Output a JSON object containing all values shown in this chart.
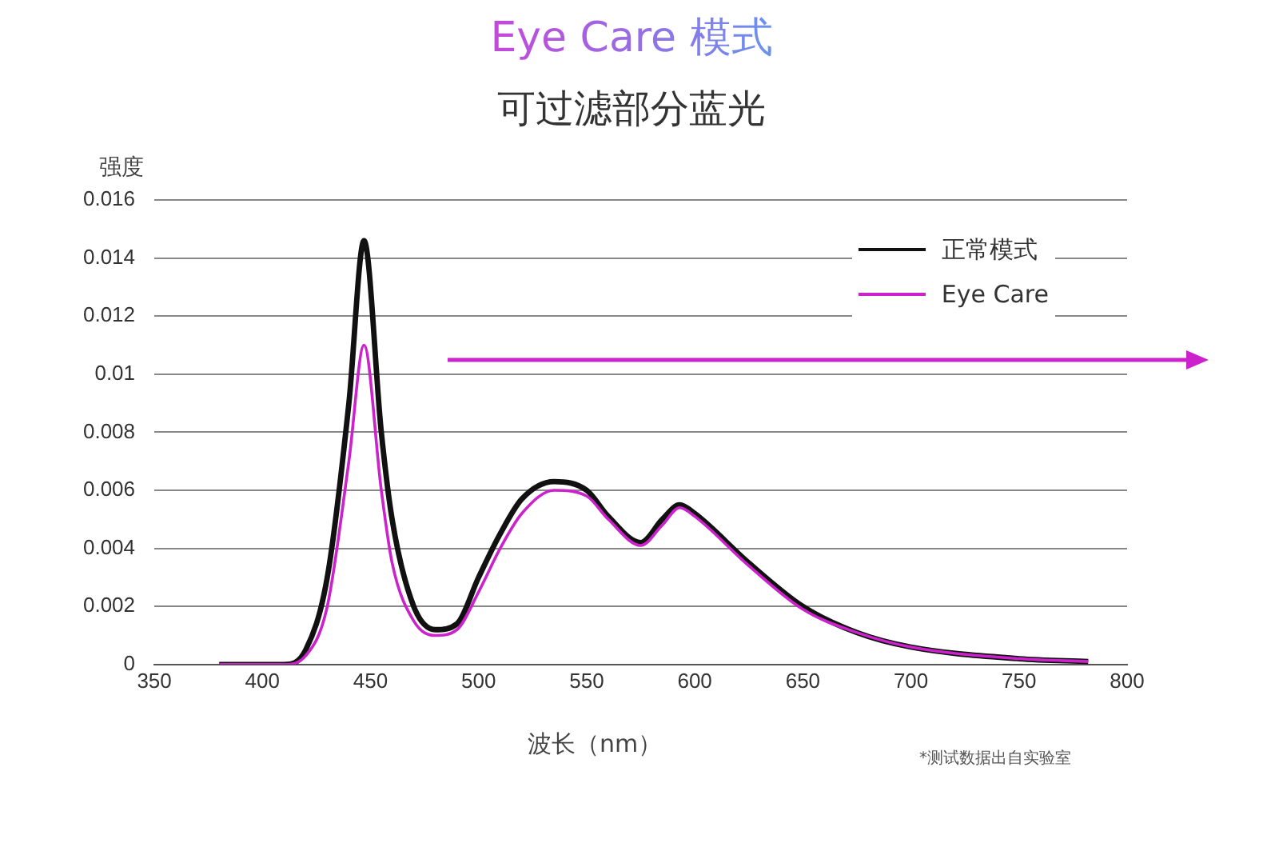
{
  "chart_data": {
    "type": "line",
    "title": "Eye Care 模式",
    "subtitle": "可过滤部分蓝光",
    "xlabel": "波长（nm）",
    "ylabel": "强度",
    "x": [
      380,
      410,
      420,
      430,
      440,
      447,
      455,
      460,
      470,
      480,
      490,
      500,
      510,
      520,
      535,
      550,
      560,
      575,
      585,
      593,
      600,
      625,
      650,
      675,
      700,
      750,
      782
    ],
    "series": [
      {
        "name": "正常模式",
        "color": "#111111",
        "values": [
          0,
          0,
          0.0005,
          0.003,
          0.009,
          0.0146,
          0.008,
          0.005,
          0.002,
          0.0012,
          0.0014,
          0.003,
          0.0045,
          0.0057,
          0.0063,
          0.006,
          0.0051,
          0.0042,
          0.005,
          0.0055,
          0.0052,
          0.0035,
          0.002,
          0.0011,
          0.0006,
          0.0002,
          0.0001
        ]
      },
      {
        "name": "Eye Care",
        "color": "#cc22cc",
        "values": [
          0,
          0,
          0.0003,
          0.002,
          0.007,
          0.011,
          0.006,
          0.0035,
          0.0015,
          0.001,
          0.0012,
          0.0025,
          0.004,
          0.0052,
          0.006,
          0.0058,
          0.005,
          0.0041,
          0.0048,
          0.0054,
          0.0051,
          0.0034,
          0.0019,
          0.0011,
          0.0006,
          0.0002,
          0.0001
        ]
      }
    ],
    "xlim": [
      350,
      800
    ],
    "xticks": [
      350,
      400,
      450,
      500,
      550,
      600,
      650,
      700,
      750,
      800
    ],
    "ylim": [
      0,
      0.016
    ],
    "yticks": [
      0,
      0.002,
      0.004,
      0.006,
      0.008,
      0.01,
      0.012,
      0.014,
      0.016
    ],
    "grid": "y",
    "legend": "top right",
    "marker": "none",
    "line_style": "solid",
    "annotations": [
      "*测试数据出自实验室"
    ]
  }
}
